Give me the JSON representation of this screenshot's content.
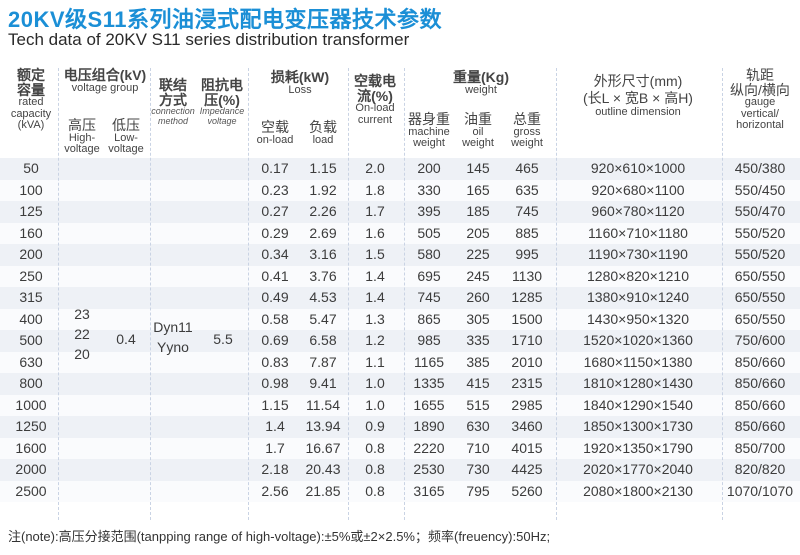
{
  "title": {
    "cn": "20KV级S11系列油浸式配电变压器技术参数",
    "en": "Tech data of 20KV S11 series distribution transformer"
  },
  "headers": {
    "capacity": {
      "cn1": "额定",
      "cn2": "容量",
      "en1": "rated",
      "en2": "capacity",
      "en3": "(kVA)"
    },
    "voltage_group": {
      "cn": "电压组合(kV)",
      "en": "voltage group"
    },
    "high_voltage": {
      "cn": "高压",
      "en1": "High-",
      "en2": "voltage"
    },
    "low_voltage": {
      "cn": "低压",
      "en1": "Low-",
      "en2": "voltage"
    },
    "connection": {
      "cn1": "联结",
      "cn2": "方式",
      "en1": "connection",
      "en2": "method"
    },
    "impedance": {
      "cn1": "阻抗电",
      "cn2": "压(%)",
      "en1": "Impedance",
      "en2": "voltage"
    },
    "loss": {
      "cn": "损耗(kW)",
      "en": "Loss"
    },
    "no_load_loss": {
      "cn": "空载",
      "en": "on-load"
    },
    "load_loss": {
      "cn": "负载",
      "en": "load"
    },
    "no_load_current": {
      "cn1": "空载电",
      "cn2": "流(%)",
      "en1": "On-load",
      "en2": "current"
    },
    "weight": {
      "cn": "重量(Kg)",
      "en": "weight"
    },
    "machine_weight": {
      "cn": "器身重",
      "en1": "machine",
      "en2": "weight"
    },
    "oil_weight": {
      "cn": "油重",
      "en1": "oil",
      "en2": "weight"
    },
    "gross_weight": {
      "cn": "总重",
      "en1": "gross",
      "en2": "weight"
    },
    "outline": {
      "cn1": "外形尺寸(mm)",
      "cn2": "(长L × 宽B × 高H)",
      "en": "outline dimension"
    },
    "gauge": {
      "cn1": "轨距",
      "cn2": "纵向/横向",
      "en1": "gauge",
      "en2": "vertical/",
      "en3": "horizontal"
    }
  },
  "merged": {
    "high_voltage": [
      "23",
      "22",
      "20"
    ],
    "low_voltage": "0.4",
    "connection": [
      "Dyn11",
      "Yyno"
    ],
    "impedance": "5.5"
  },
  "rows": [
    {
      "capacity": "50",
      "no_load": "0.17",
      "load": "1.15",
      "current": "2.0",
      "machine": "200",
      "oil": "145",
      "gross": "465",
      "outline": "920×610×1000",
      "gauge": "450/380"
    },
    {
      "capacity": "100",
      "no_load": "0.23",
      "load": "1.92",
      "current": "1.8",
      "machine": "330",
      "oil": "165",
      "gross": "635",
      "outline": "920×680×1100",
      "gauge": "550/450"
    },
    {
      "capacity": "125",
      "no_load": "0.27",
      "load": "2.26",
      "current": "1.7",
      "machine": "395",
      "oil": "185",
      "gross": "745",
      "outline": "960×780×1120",
      "gauge": "550/470"
    },
    {
      "capacity": "160",
      "no_load": "0.29",
      "load": "2.69",
      "current": "1.6",
      "machine": "505",
      "oil": "205",
      "gross": "885",
      "outline": "1160×710×1180",
      "gauge": "550/520"
    },
    {
      "capacity": "200",
      "no_load": "0.34",
      "load": "3.16",
      "current": "1.5",
      "machine": "580",
      "oil": "225",
      "gross": "995",
      "outline": "1190×730×1190",
      "gauge": "550/520"
    },
    {
      "capacity": "250",
      "no_load": "0.41",
      "load": "3.76",
      "current": "1.4",
      "machine": "695",
      "oil": "245",
      "gross": "1130",
      "outline": "1280×820×1210",
      "gauge": "650/550"
    },
    {
      "capacity": "315",
      "no_load": "0.49",
      "load": "4.53",
      "current": "1.4",
      "machine": "745",
      "oil": "260",
      "gross": "1285",
      "outline": "1380×910×1240",
      "gauge": "650/550"
    },
    {
      "capacity": "400",
      "no_load": "0.58",
      "load": "5.47",
      "current": "1.3",
      "machine": "865",
      "oil": "305",
      "gross": "1500",
      "outline": "1430×950×1320",
      "gauge": "650/550"
    },
    {
      "capacity": "500",
      "no_load": "0.69",
      "load": "6.58",
      "current": "1.2",
      "machine": "985",
      "oil": "335",
      "gross": "1710",
      "outline": "1520×1020×1360",
      "gauge": "750/600"
    },
    {
      "capacity": "630",
      "no_load": "0.83",
      "load": "7.87",
      "current": "1.1",
      "machine": "1165",
      "oil": "385",
      "gross": "2010",
      "outline": "1680×1150×1380",
      "gauge": "850/660"
    },
    {
      "capacity": "800",
      "no_load": "0.98",
      "load": "9.41",
      "current": "1.0",
      "machine": "1335",
      "oil": "415",
      "gross": "2315",
      "outline": "1810×1280×1430",
      "gauge": "850/660"
    },
    {
      "capacity": "1000",
      "no_load": "1.15",
      "load": "11.54",
      "current": "1.0",
      "machine": "1655",
      "oil": "515",
      "gross": "2985",
      "outline": "1840×1290×1540",
      "gauge": "850/660"
    },
    {
      "capacity": "1250",
      "no_load": "1.4",
      "load": "13.94",
      "current": "0.9",
      "machine": "1890",
      "oil": "630",
      "gross": "3460",
      "outline": "1850×1300×1730",
      "gauge": "850/660"
    },
    {
      "capacity": "1600",
      "no_load": "1.7",
      "load": "16.67",
      "current": "0.8",
      "machine": "2220",
      "oil": "710",
      "gross": "4015",
      "outline": "1920×1350×1790",
      "gauge": "850/700"
    },
    {
      "capacity": "2000",
      "no_load": "2.18",
      "load": "20.43",
      "current": "0.8",
      "machine": "2530",
      "oil": "730",
      "gross": "4425",
      "outline": "2020×1770×2040",
      "gauge": "820/820"
    },
    {
      "capacity": "2500",
      "no_load": "2.56",
      "load": "21.85",
      "current": "0.8",
      "machine": "3165",
      "oil": "795",
      "gross": "5260",
      "outline": "2080×1800×2130",
      "gauge": "1070/1070"
    }
  ],
  "note": "注(note):高压分接范围(tanpping range of high-voltage):±5%或±2×2.5%；频率(freuency):50Hz;",
  "colors": {
    "title": "#1b8fd6",
    "band": "#eef1f6"
  }
}
